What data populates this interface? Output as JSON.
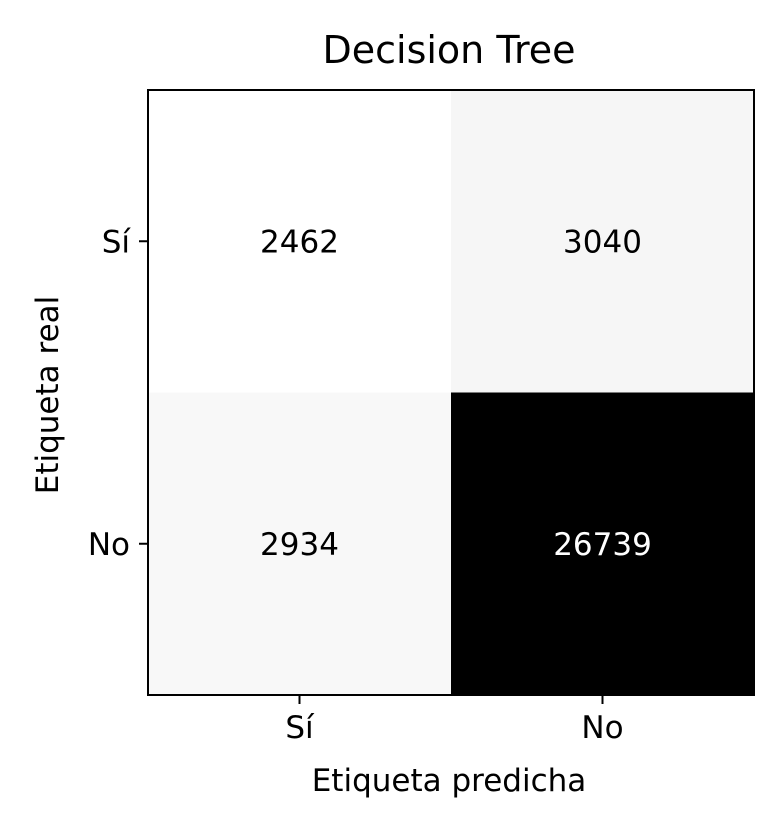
{
  "chart_data": {
    "type": "heatmap",
    "title": "Decision Tree",
    "xlabel": "Etiqueta predicha",
    "ylabel": "Etiqueta real",
    "x_categories": [
      "Sí",
      "No"
    ],
    "y_categories": [
      "Sí",
      "No"
    ],
    "values": [
      [
        2462,
        3040
      ],
      [
        2934,
        26739
      ]
    ],
    "colormap": "Greys",
    "colormap_low": "#ffffff",
    "colormap_high": "#000000",
    "grid": false
  }
}
